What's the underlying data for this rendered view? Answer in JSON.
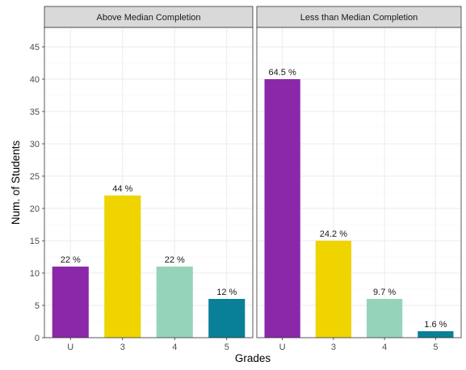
{
  "chart_data": {
    "type": "bar",
    "xlabel": "Grades",
    "ylabel": "Num. of Students",
    "ylim": [
      0,
      48
    ],
    "yticks": [
      0,
      5,
      10,
      15,
      20,
      25,
      30,
      35,
      40,
      45
    ],
    "grid": true,
    "legend": "none",
    "categories": [
      "U",
      "3",
      "4",
      "5"
    ],
    "colors": [
      "#8b27a9",
      "#efd400",
      "#95d4bb",
      "#0a8098"
    ],
    "panels": [
      {
        "title": "Above Median Completion",
        "values": [
          11,
          22,
          11,
          6
        ],
        "labels": [
          "22 %",
          "44 %",
          "22 %",
          "12 %"
        ]
      },
      {
        "title": "Less than Median Completion",
        "values": [
          40,
          15,
          6,
          1
        ],
        "labels": [
          "64.5 %",
          "24.2 %",
          "9.7 %",
          "1.6 %"
        ]
      }
    ]
  }
}
